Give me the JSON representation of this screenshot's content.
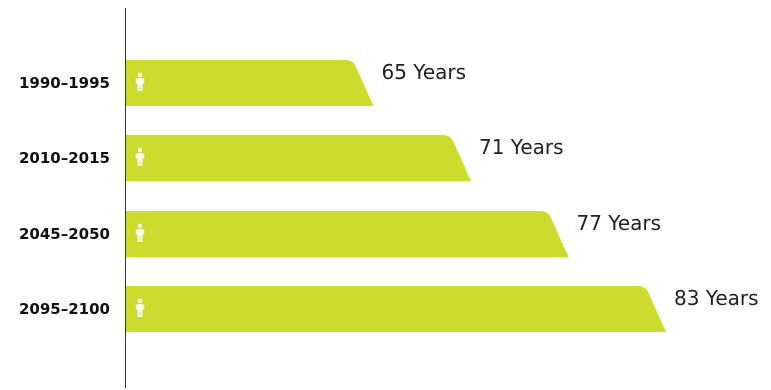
{
  "chart_data": {
    "type": "bar",
    "orientation": "horizontal",
    "categories": [
      "1990–1995",
      "2010–2015",
      "2045–2050",
      "2095–2100"
    ],
    "values": [
      65,
      71,
      77,
      83
    ],
    "value_labels": [
      "65 Years",
      "71 Years",
      "77 Years",
      "83 Years"
    ],
    "unit": "Years",
    "title": "",
    "xlabel": "",
    "ylabel": "",
    "grid": false,
    "legend": "none",
    "bar_color": "#cbdc2e",
    "axis_color": "#333333",
    "icon_color": "#ffffff",
    "bar_icon": "person-icon"
  }
}
